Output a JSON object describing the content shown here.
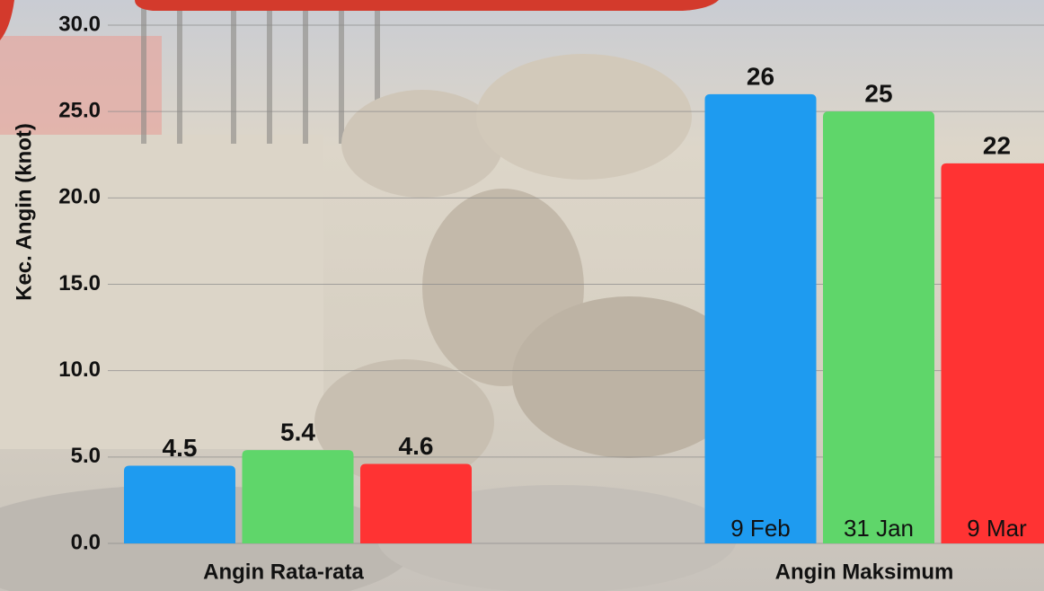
{
  "chart_data": {
    "type": "bar",
    "y_label": "Kec. Angin (knot)",
    "categories": [
      "Angin Rata-rata",
      "Angin Maksimum"
    ],
    "series": [
      {
        "color": "#1e9bf0",
        "values": [
          4.5,
          26
        ],
        "bar_notes": [
          null,
          "9 Feb"
        ]
      },
      {
        "color": "#5fd66a",
        "values": [
          5.4,
          25
        ],
        "bar_notes": [
          null,
          "31 Jan"
        ]
      },
      {
        "color": "#ff3333",
        "values": [
          4.6,
          22
        ],
        "bar_notes": [
          null,
          "9 Mar"
        ]
      }
    ],
    "ylim": [
      0,
      30
    ],
    "yticks": [
      {
        "value": 0,
        "label": "0.0"
      },
      {
        "value": 5,
        "label": "5.0"
      },
      {
        "value": 10,
        "label": "10.0"
      },
      {
        "value": 15,
        "label": "15.0"
      },
      {
        "value": 20,
        "label": "20.0"
      },
      {
        "value": 25,
        "label": "25.0"
      },
      {
        "value": 30,
        "label": "30.0"
      }
    ],
    "grid": true
  }
}
